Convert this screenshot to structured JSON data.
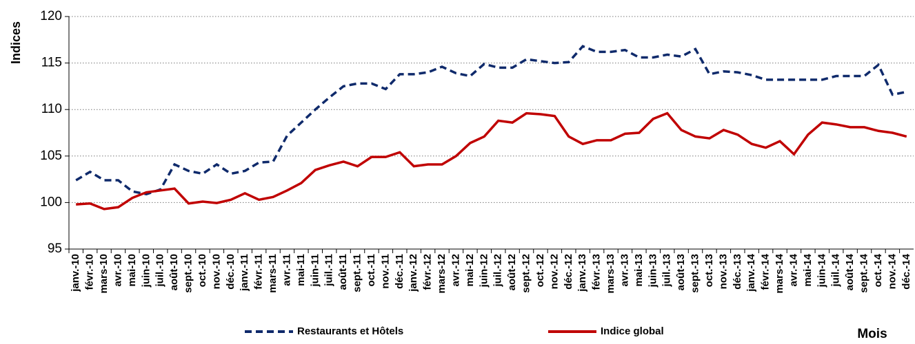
{
  "chart_data": {
    "type": "line",
    "categories": [
      "janv.-10",
      "févr.-10",
      "mars-10",
      "avr.-10",
      "mai-10",
      "juin-10",
      "juil.-10",
      "août-10",
      "sept.-10",
      "oct.-10",
      "nov.-10",
      "déc.-10",
      "janv.-11",
      "févr.-11",
      "mars-11",
      "avr.-11",
      "mai-11",
      "juin-11",
      "juil.-11",
      "août-11",
      "sept.-11",
      "oct.-11",
      "nov.-11",
      "déc.-11",
      "janv.-12",
      "févr.-12",
      "mars-12",
      "avr.-12",
      "mai-12",
      "juin-12",
      "juil.-12",
      "août-12",
      "sept.-12",
      "oct.-12",
      "nov.-12",
      "déc.-12",
      "janv.-13",
      "févr.-13",
      "mars-13",
      "avr.-13",
      "mai-13",
      "juin-13",
      "juil.-13",
      "août-13",
      "sept.-13",
      "oct.-13",
      "nov.-13",
      "déc.-13",
      "janv.-14",
      "févr.-14",
      "mars-14",
      "avr.-14",
      "mai-14",
      "juin-14",
      "juil.-14",
      "août-14",
      "sept.-14",
      "oct.-14",
      "nov.-14",
      "déc.-14"
    ],
    "series": [
      {
        "name": "Restaurants et Hôtels",
        "color": "#0f2a6b",
        "dash": true,
        "values": [
          102.4,
          103.3,
          102.4,
          102.4,
          101.2,
          100.9,
          101.4,
          104.1,
          103.4,
          103.1,
          104.1,
          103.1,
          103.4,
          104.3,
          104.4,
          107.2,
          108.6,
          110.0,
          111.3,
          112.5,
          112.8,
          112.8,
          112.2,
          113.8,
          113.8,
          114.0,
          114.6,
          113.9,
          113.6,
          114.9,
          114.5,
          114.5,
          115.4,
          115.2,
          115.0,
          115.1,
          116.8,
          116.2,
          116.2,
          116.4,
          115.6,
          115.6,
          115.9,
          115.7,
          116.5,
          113.8,
          114.1,
          114.0,
          113.7,
          113.2,
          113.2,
          113.2,
          113.2,
          113.2,
          113.6,
          113.6,
          113.6,
          114.8,
          111.6,
          111.9
        ]
      },
      {
        "name": "Indice global",
        "color": "#c00000",
        "dash": false,
        "values": [
          99.8,
          99.9,
          99.3,
          99.5,
          100.5,
          101.1,
          101.3,
          101.5,
          99.9,
          100.1,
          99.95,
          100.3,
          101.0,
          100.3,
          100.6,
          101.3,
          102.1,
          103.5,
          104.0,
          104.4,
          103.9,
          104.9,
          104.9,
          105.4,
          103.9,
          104.1,
          104.1,
          105.0,
          106.4,
          107.1,
          108.8,
          108.6,
          109.6,
          109.5,
          109.3,
          107.1,
          106.3,
          106.7,
          106.7,
          107.4,
          107.5,
          109.0,
          109.6,
          107.8,
          107.1,
          106.9,
          107.8,
          107.3,
          106.3,
          105.9,
          106.6,
          105.2,
          107.3,
          108.6,
          108.4,
          108.1,
          108.1,
          107.7,
          107.5,
          107.1
        ]
      }
    ],
    "y_label": "Indices",
    "x_label": "Mois",
    "ylim": [
      95,
      120
    ],
    "yticks": [
      95,
      100,
      105,
      110,
      115,
      120
    ],
    "grid": true,
    "legend": "bottom"
  }
}
